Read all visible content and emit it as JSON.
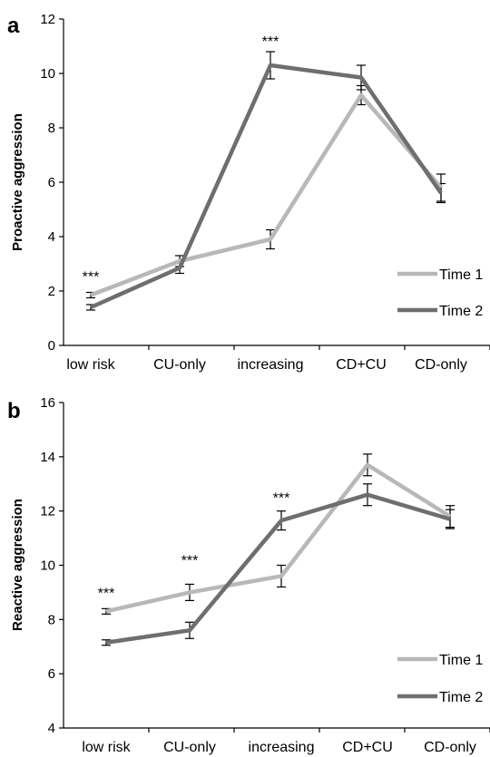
{
  "figure": {
    "panels": [
      {
        "label": "a"
      },
      {
        "label": "b"
      }
    ]
  },
  "chart_data": [
    {
      "type": "line",
      "panel": "a",
      "title": "",
      "xlabel": "",
      "ylabel": "Proactive aggression",
      "categories": [
        "low risk",
        "CU-only",
        "increasing",
        "CD+CU",
        "CD-only"
      ],
      "ylim": [
        0,
        12
      ],
      "yticks": [
        0,
        2,
        4,
        6,
        8,
        10,
        12
      ],
      "series": [
        {
          "name": "Time 1",
          "color": "#b8b8b8",
          "values": [
            1.85,
            3.1,
            3.9,
            9.2,
            5.8
          ],
          "errors": [
            0.1,
            0.2,
            0.35,
            0.35,
            0.5
          ]
        },
        {
          "name": "Time 2",
          "color": "#6e6e6e",
          "values": [
            1.4,
            2.85,
            10.3,
            9.85,
            5.6
          ],
          "errors": [
            0.1,
            0.2,
            0.5,
            0.45,
            0.35
          ]
        }
      ],
      "annotations": [
        {
          "category": "low risk",
          "text": "***",
          "y": 2.35
        },
        {
          "category": "increasing",
          "text": "***",
          "y": 11.0
        }
      ],
      "legend": "bottom-right",
      "grid": false
    },
    {
      "type": "line",
      "panel": "b",
      "title": "",
      "xlabel": "",
      "ylabel": "Reactive aggression",
      "categories": [
        "low risk",
        "CU-only",
        "increasing",
        "CD+CU",
        "CD-only"
      ],
      "ylim": [
        4,
        16
      ],
      "yticks": [
        4,
        6,
        8,
        10,
        12,
        14,
        16
      ],
      "series": [
        {
          "name": "Time 1",
          "color": "#b8b8b8",
          "values": [
            8.3,
            9.0,
            9.6,
            13.7,
            11.8
          ],
          "errors": [
            0.1,
            0.3,
            0.4,
            0.4,
            0.4
          ]
        },
        {
          "name": "Time 2",
          "color": "#6e6e6e",
          "values": [
            7.15,
            7.6,
            11.65,
            12.6,
            11.7
          ],
          "errors": [
            0.1,
            0.3,
            0.35,
            0.4,
            0.35
          ]
        }
      ],
      "annotations": [
        {
          "category": "low risk",
          "text": "***",
          "y": 8.8
        },
        {
          "category": "CU-only",
          "text": "***",
          "y": 10.0
        },
        {
          "category": "increasing",
          "text": "***",
          "y": 12.3
        }
      ],
      "legend": "bottom-right",
      "grid": false
    }
  ]
}
